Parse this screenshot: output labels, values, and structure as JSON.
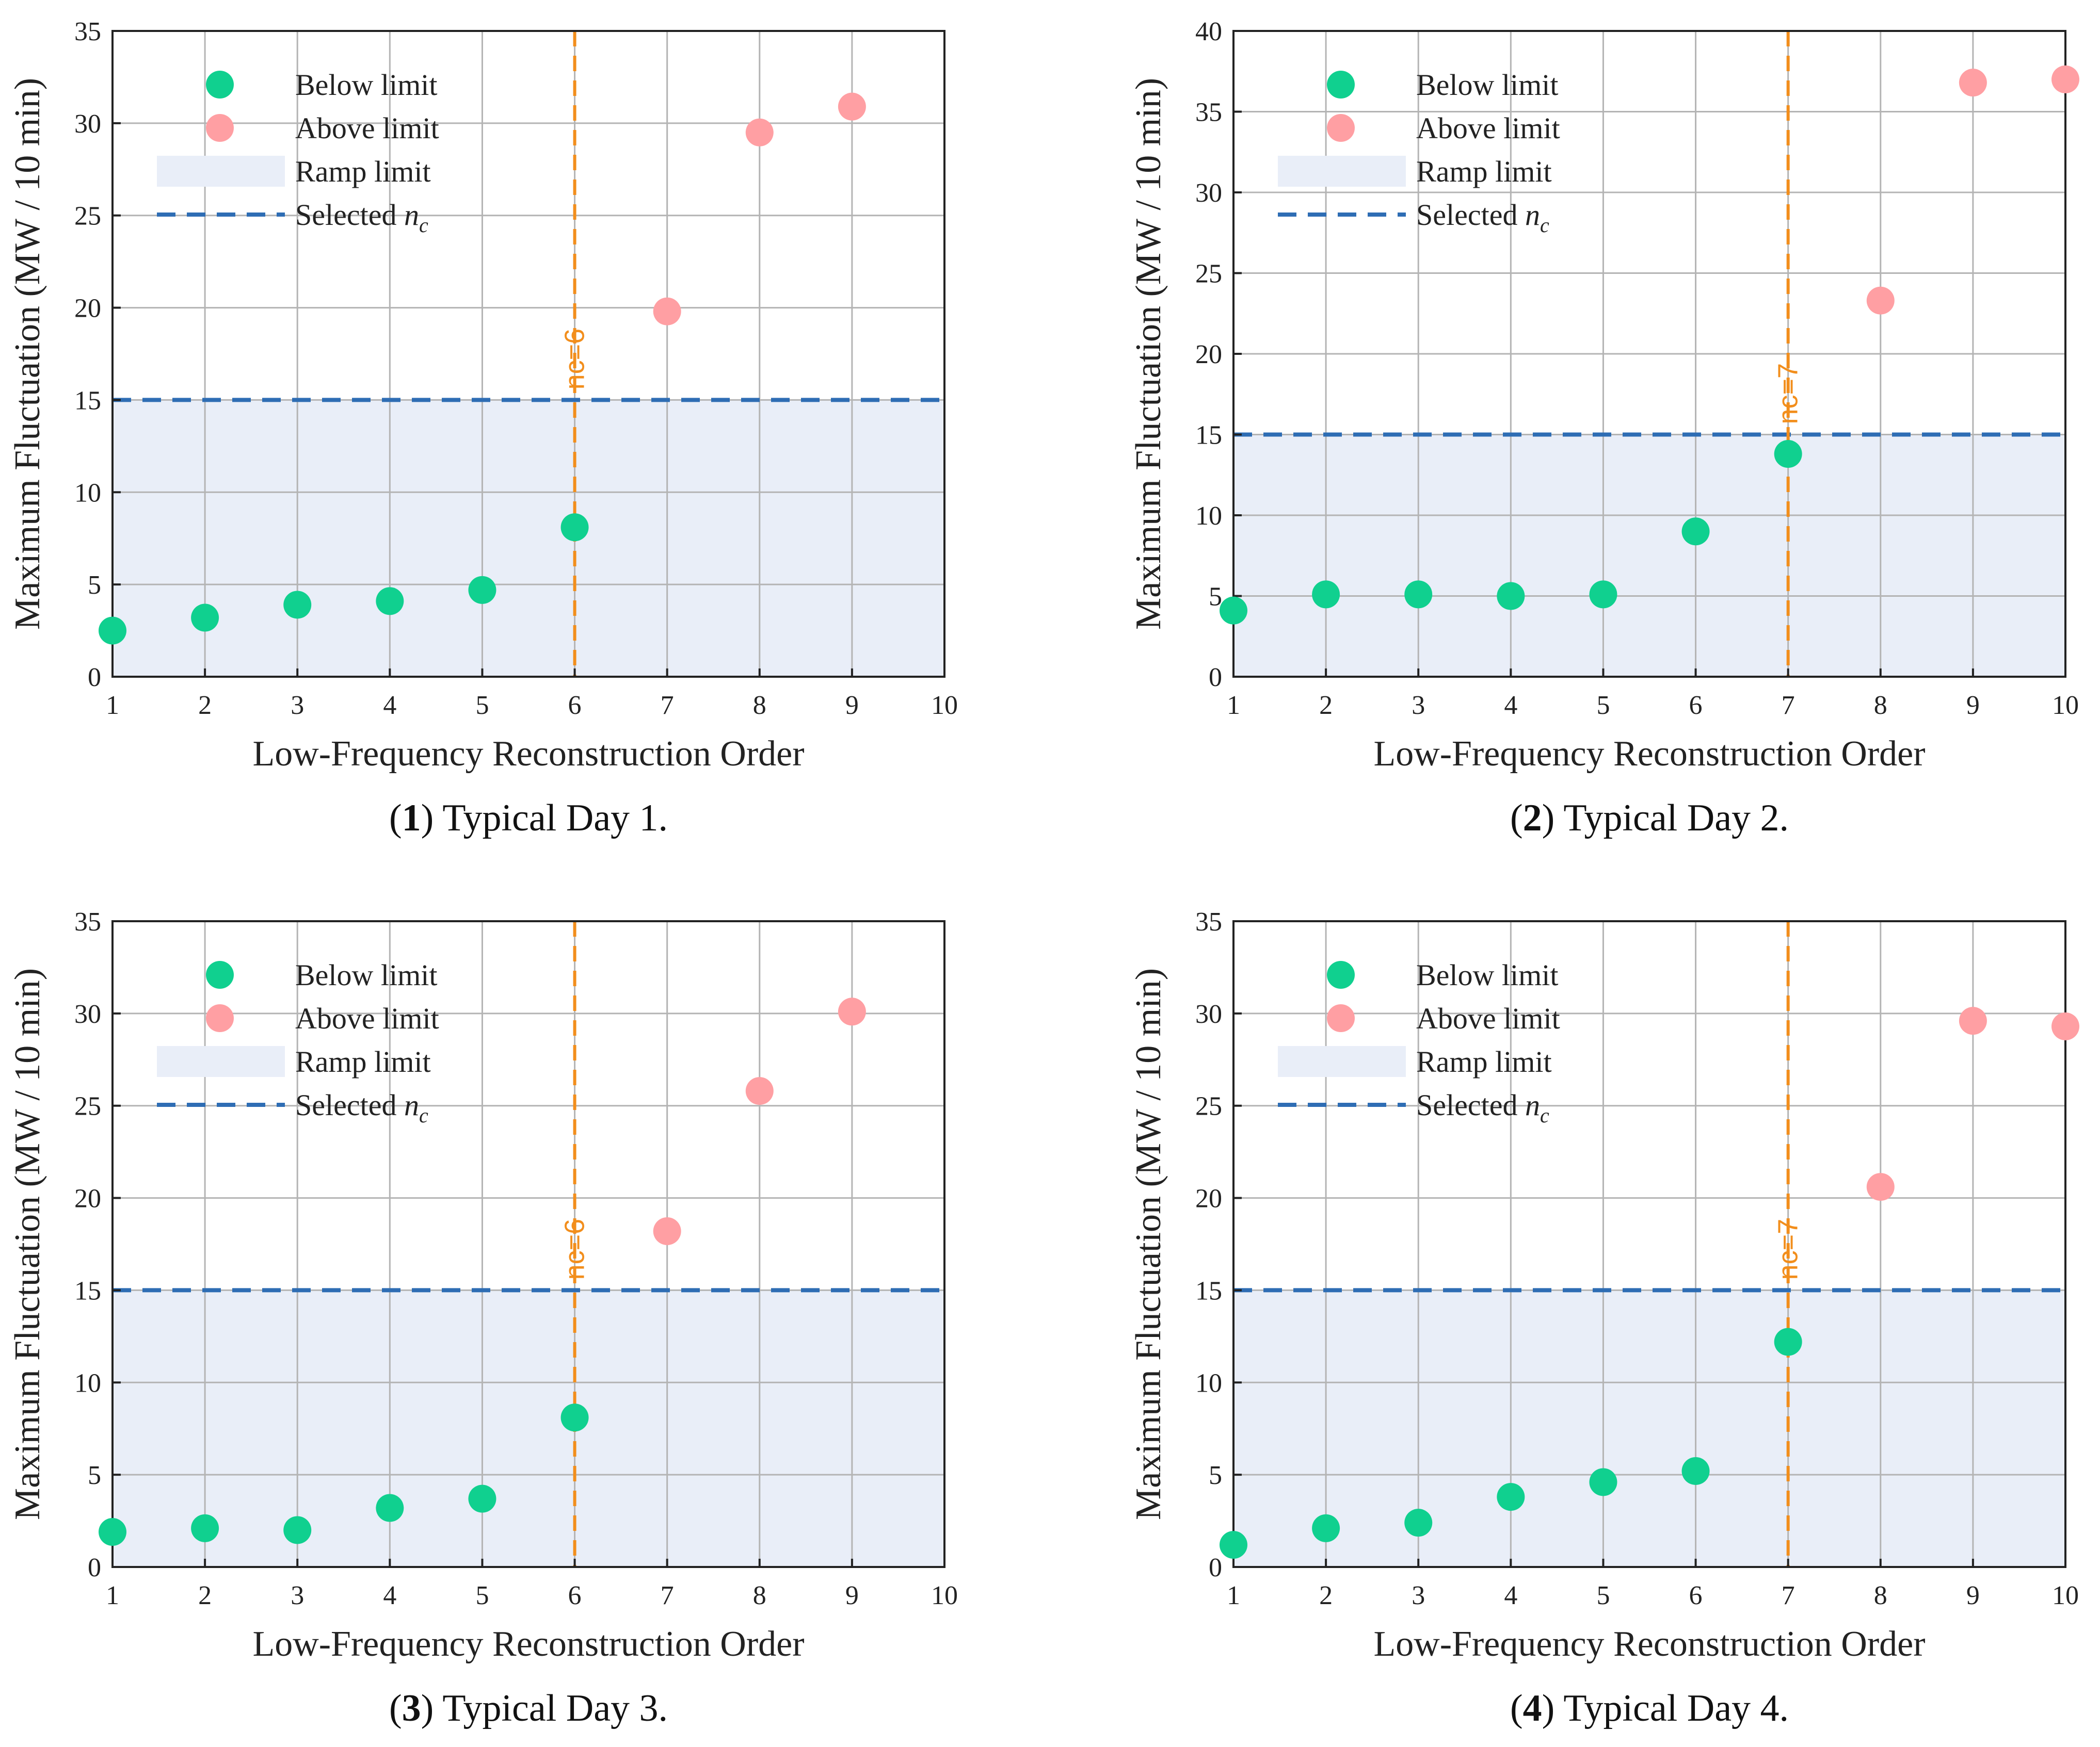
{
  "colors": {
    "below": "#10d08f",
    "above": "#ff9fa3",
    "ramp_fill": "#e9eef8",
    "limit_line": "#2e6db4",
    "selected_line": "#f28e1c",
    "grid": "#b4b4b4"
  },
  "legend": {
    "below": "Below limit",
    "above": "Above limit",
    "ramp": "Ramp limit",
    "selected_prefix": "Selected ",
    "selected_symbol": "n",
    "selected_sub": "c"
  },
  "chart_data": [
    {
      "type": "scatter",
      "caption_number": "1",
      "caption_text": " Typical Day 1.",
      "xlabel": "Low-Frequency Reconstruction Order",
      "ylabel": "Maximum Fluctuation (MW / 10 min)",
      "xlim": [
        1,
        10
      ],
      "ylim": [
        0,
        35
      ],
      "xticks": [
        1,
        2,
        3,
        4,
        5,
        6,
        7,
        8,
        9,
        10
      ],
      "yticks": [
        0,
        5,
        10,
        15,
        20,
        25,
        30,
        35
      ],
      "ramp_limit": 15,
      "selected_nc": 6,
      "nc_label": "nc=6",
      "below": {
        "x": [
          1,
          2,
          3,
          4,
          5,
          6
        ],
        "y": [
          2.5,
          3.2,
          3.9,
          4.1,
          4.7,
          8.1
        ]
      },
      "above": {
        "x": [
          7,
          8,
          9
        ],
        "y": [
          19.8,
          29.5,
          30.9
        ]
      }
    },
    {
      "type": "scatter",
      "caption_number": "2",
      "caption_text": " Typical Day 2.",
      "xlabel": "Low-Frequency Reconstruction Order",
      "ylabel": "Maximum Fluctuation (MW / 10 min)",
      "xlim": [
        1,
        10
      ],
      "ylim": [
        0,
        40
      ],
      "xticks": [
        1,
        2,
        3,
        4,
        5,
        6,
        7,
        8,
        9,
        10
      ],
      "yticks": [
        0,
        5,
        10,
        15,
        20,
        25,
        30,
        35,
        40
      ],
      "ramp_limit": 15,
      "selected_nc": 7,
      "nc_label": "nc=7",
      "below": {
        "x": [
          1,
          2,
          3,
          4,
          5,
          6,
          7
        ],
        "y": [
          4.1,
          5.1,
          5.1,
          5.0,
          5.1,
          9.0,
          13.8
        ]
      },
      "above": {
        "x": [
          8,
          9,
          10
        ],
        "y": [
          23.3,
          36.8,
          37.0
        ]
      }
    },
    {
      "type": "scatter",
      "caption_number": "3",
      "caption_text": " Typical Day 3.",
      "xlabel": "Low-Frequency Reconstruction Order",
      "ylabel": "Maximum Fluctuation (MW / 10 min)",
      "xlim": [
        1,
        10
      ],
      "ylim": [
        0,
        35
      ],
      "xticks": [
        1,
        2,
        3,
        4,
        5,
        6,
        7,
        8,
        9,
        10
      ],
      "yticks": [
        0,
        5,
        10,
        15,
        20,
        25,
        30,
        35
      ],
      "ramp_limit": 15,
      "selected_nc": 6,
      "nc_label": "nc=6",
      "below": {
        "x": [
          1,
          2,
          3,
          4,
          5,
          6
        ],
        "y": [
          1.9,
          2.1,
          2.0,
          3.2,
          3.7,
          8.1
        ]
      },
      "above": {
        "x": [
          7,
          8,
          9
        ],
        "y": [
          18.2,
          25.8,
          30.1
        ]
      }
    },
    {
      "type": "scatter",
      "caption_number": "4",
      "caption_text": " Typical Day 4.",
      "xlabel": "Low-Frequency Reconstruction Order",
      "ylabel": "Maximum Fluctuation (MW / 10 min)",
      "xlim": [
        1,
        10
      ],
      "ylim": [
        0,
        35
      ],
      "xticks": [
        1,
        2,
        3,
        4,
        5,
        6,
        7,
        8,
        9,
        10
      ],
      "yticks": [
        0,
        5,
        10,
        15,
        20,
        25,
        30,
        35
      ],
      "ramp_limit": 15,
      "selected_nc": 7,
      "nc_label": "nc=7",
      "below": {
        "x": [
          1,
          2,
          3,
          4,
          5,
          6,
          7
        ],
        "y": [
          1.2,
          2.1,
          2.4,
          3.8,
          4.6,
          5.2,
          12.2
        ]
      },
      "above": {
        "x": [
          8,
          9,
          10
        ],
        "y": [
          20.6,
          29.6,
          29.3
        ]
      }
    }
  ]
}
